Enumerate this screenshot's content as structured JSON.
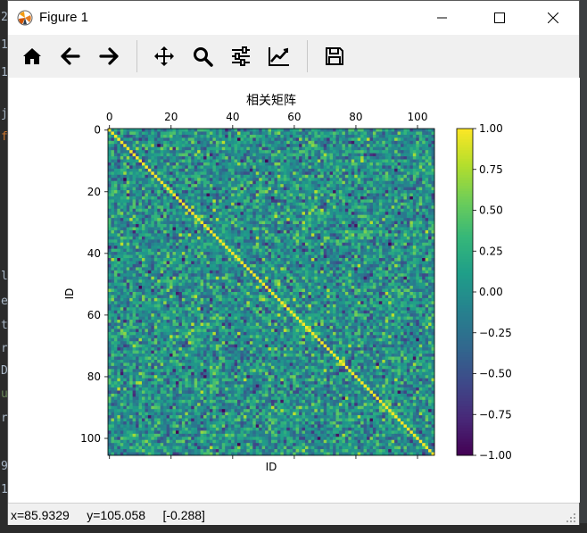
{
  "window": {
    "title": "Figure 1"
  },
  "toolbar": {
    "buttons": [
      {
        "name": "home",
        "icon": "home-icon"
      },
      {
        "name": "back",
        "icon": "arrow-left-icon"
      },
      {
        "name": "forward",
        "icon": "arrow-right-icon"
      },
      {
        "name": "pan",
        "icon": "move-icon"
      },
      {
        "name": "zoom",
        "icon": "magnifier-icon"
      },
      {
        "name": "configure-subplots",
        "icon": "sliders-icon"
      },
      {
        "name": "edit-axes",
        "icon": "line-chart-icon"
      },
      {
        "name": "save",
        "icon": "floppy-icon"
      }
    ]
  },
  "status": {
    "readout": "x=85.9329     y=105.058     [-0.288]"
  },
  "ide_gutter": [
    "2",
    "1",
    "1",
    "j",
    "f",
    "l",
    "e",
    "t",
    "r",
    "D",
    "u",
    "r",
    "9",
    "1"
  ],
  "chart_data": {
    "type": "heatmap",
    "title": "相关矩阵",
    "xlabel": "ID",
    "ylabel": "ID",
    "n": 106,
    "x_ticks": [
      "0",
      "20",
      "40",
      "60",
      "80",
      "100"
    ],
    "y_ticks": [
      "0",
      "20",
      "40",
      "60",
      "80",
      "100"
    ],
    "xlim": [
      -0.5,
      105.5
    ],
    "ylim": [
      105.5,
      -0.5
    ],
    "x_tick_position": "top",
    "colormap": "viridis",
    "colorbar": {
      "range": [
        -1.0,
        1.0
      ],
      "ticks": [
        "1.00",
        "0.75",
        "0.50",
        "0.25",
        "0.00",
        "−0.25",
        "−0.50",
        "−0.75",
        "−1.00"
      ]
    },
    "diagonal_value": 1.0,
    "off_diagonal_range": [
      -1.0,
      0.8
    ],
    "grid": false
  }
}
